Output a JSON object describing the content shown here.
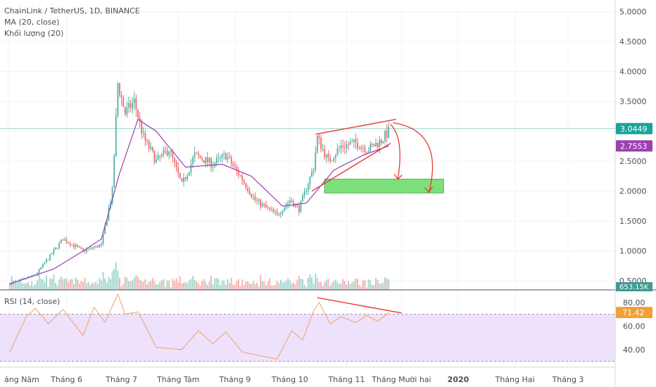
{
  "header": {
    "symbol": "ChainLink / TetherUS, 1D, BINANCE",
    "ma_indicator": "MA (20, close)",
    "volume_indicator": "Khối lượng (20)",
    "rsi_indicator": "RSI (14, close)"
  },
  "colors": {
    "up": "#4fb3a6",
    "down": "#ef6a6a",
    "ma": "#9c3fb0",
    "rsi_line": "#f4a261",
    "rsi_band": "#ede1fb",
    "annotation": "#e53935",
    "target_zone": "#7ee07a",
    "price_line": "#1aa39a"
  },
  "chart_data": [
    {
      "type": "candlestick",
      "title": "ChainLink / TetherUS, 1D, BINANCE",
      "price_axis_ticks": [
        "5.0000",
        "4.5000",
        "4.0000",
        "3.5000",
        "3.0000",
        "2.5000",
        "2.0000",
        "1.5000",
        "1.0000",
        "0.5000"
      ],
      "ylim": [
        0.35,
        5.1
      ],
      "time_axis_labels": [
        "áng Năm",
        "Tháng 6",
        "Tháng 7",
        "Tháng Tám",
        "Tháng 9",
        "Tháng 10",
        "Tháng 11",
        "Tháng Mười hai",
        "2020",
        "Tháng Hai",
        "Tháng 3"
      ],
      "last_price": "3.0449",
      "ma_value": "2.7553",
      "volume_value": "653.15K",
      "price_path": [
        {
          "date": "2019-05-01",
          "price": 0.45
        },
        {
          "date": "2019-05-15",
          "price": 0.6
        },
        {
          "date": "2019-05-30",
          "price": 1.2
        },
        {
          "date": "2019-06-10",
          "price": 1.0
        },
        {
          "date": "2019-06-20",
          "price": 1.1
        },
        {
          "date": "2019-06-26",
          "price": 2.0
        },
        {
          "date": "2019-06-29",
          "price": 3.8
        },
        {
          "date": "2019-07-03",
          "price": 3.3
        },
        {
          "date": "2019-07-08",
          "price": 3.5
        },
        {
          "date": "2019-07-13",
          "price": 2.9
        },
        {
          "date": "2019-07-20",
          "price": 2.5
        },
        {
          "date": "2019-07-27",
          "price": 2.7
        },
        {
          "date": "2019-08-03",
          "price": 2.1
        },
        {
          "date": "2019-08-10",
          "price": 2.6
        },
        {
          "date": "2019-08-20",
          "price": 2.45
        },
        {
          "date": "2019-08-27",
          "price": 2.6
        },
        {
          "date": "2019-09-05",
          "price": 2.2
        },
        {
          "date": "2019-09-12",
          "price": 1.85
        },
        {
          "date": "2019-09-24",
          "price": 1.6
        },
        {
          "date": "2019-10-01",
          "price": 1.85
        },
        {
          "date": "2019-10-06",
          "price": 1.7
        },
        {
          "date": "2019-10-14",
          "price": 2.4
        },
        {
          "date": "2019-10-16",
          "price": 2.9
        },
        {
          "date": "2019-10-22",
          "price": 2.5
        },
        {
          "date": "2019-10-29",
          "price": 2.75
        },
        {
          "date": "2019-11-06",
          "price": 2.8
        },
        {
          "date": "2019-11-13",
          "price": 2.7
        },
        {
          "date": "2019-11-20",
          "price": 2.85
        },
        {
          "date": "2019-11-24",
          "price": 3.0
        }
      ],
      "ma_path": [
        {
          "date": "2019-05-01",
          "value": 0.45
        },
        {
          "date": "2019-05-25",
          "value": 0.7
        },
        {
          "date": "2019-06-10",
          "value": 1.0
        },
        {
          "date": "2019-06-20",
          "value": 1.2
        },
        {
          "date": "2019-06-30",
          "value": 2.3
        },
        {
          "date": "2019-07-10",
          "value": 3.2
        },
        {
          "date": "2019-07-20",
          "value": 3.0
        },
        {
          "date": "2019-08-05",
          "value": 2.4
        },
        {
          "date": "2019-08-25",
          "value": 2.45
        },
        {
          "date": "2019-09-10",
          "value": 2.25
        },
        {
          "date": "2019-09-27",
          "value": 1.75
        },
        {
          "date": "2019-10-10",
          "value": 1.8
        },
        {
          "date": "2019-10-25",
          "value": 2.35
        },
        {
          "date": "2019-11-10",
          "value": 2.6
        },
        {
          "date": "2019-11-24",
          "value": 2.755
        }
      ],
      "annotations": {
        "upper_trendline": [
          {
            "date": "2019-10-15",
            "price": 2.95
          },
          {
            "date": "2019-11-28",
            "price": 3.2
          }
        ],
        "lower_trendline": [
          {
            "date": "2019-10-13",
            "price": 2.0
          },
          {
            "date": "2019-11-25",
            "price": 2.8
          }
        ],
        "target_zone": {
          "date_from": "2019-10-20",
          "date_to": "2019-12-24",
          "price_from": 1.97,
          "price_to": 2.2
        }
      }
    },
    {
      "type": "line",
      "title": "RSI (14, close)",
      "ticks": [
        "80.00",
        "60.00",
        "40.00"
      ],
      "ylim": [
        25,
        90
      ],
      "band": [
        30,
        70
      ],
      "last_value": "71.42",
      "rsi_path": [
        {
          "date": "2019-05-01",
          "value": 38
        },
        {
          "date": "2019-05-10",
          "value": 68
        },
        {
          "date": "2019-05-15",
          "value": 75
        },
        {
          "date": "2019-05-22",
          "value": 62
        },
        {
          "date": "2019-05-30",
          "value": 74
        },
        {
          "date": "2019-06-10",
          "value": 52
        },
        {
          "date": "2019-06-16",
          "value": 76
        },
        {
          "date": "2019-06-22",
          "value": 63
        },
        {
          "date": "2019-06-29",
          "value": 87
        },
        {
          "date": "2019-07-03",
          "value": 70
        },
        {
          "date": "2019-07-10",
          "value": 72
        },
        {
          "date": "2019-07-20",
          "value": 42
        },
        {
          "date": "2019-08-03",
          "value": 40
        },
        {
          "date": "2019-08-12",
          "value": 56
        },
        {
          "date": "2019-08-20",
          "value": 45
        },
        {
          "date": "2019-08-27",
          "value": 55
        },
        {
          "date": "2019-09-05",
          "value": 38
        },
        {
          "date": "2019-09-14",
          "value": 35
        },
        {
          "date": "2019-09-24",
          "value": 32
        },
        {
          "date": "2019-10-02",
          "value": 56
        },
        {
          "date": "2019-10-08",
          "value": 48
        },
        {
          "date": "2019-10-14",
          "value": 73
        },
        {
          "date": "2019-10-17",
          "value": 80
        },
        {
          "date": "2019-10-23",
          "value": 62
        },
        {
          "date": "2019-10-29",
          "value": 68
        },
        {
          "date": "2019-11-06",
          "value": 63
        },
        {
          "date": "2019-11-12",
          "value": 69
        },
        {
          "date": "2019-11-18",
          "value": 64
        },
        {
          "date": "2019-11-24",
          "value": 71.4
        }
      ],
      "divergence_line": [
        {
          "date": "2019-10-16",
          "value": 84
        },
        {
          "date": "2019-12-01",
          "value": 71
        }
      ]
    }
  ]
}
